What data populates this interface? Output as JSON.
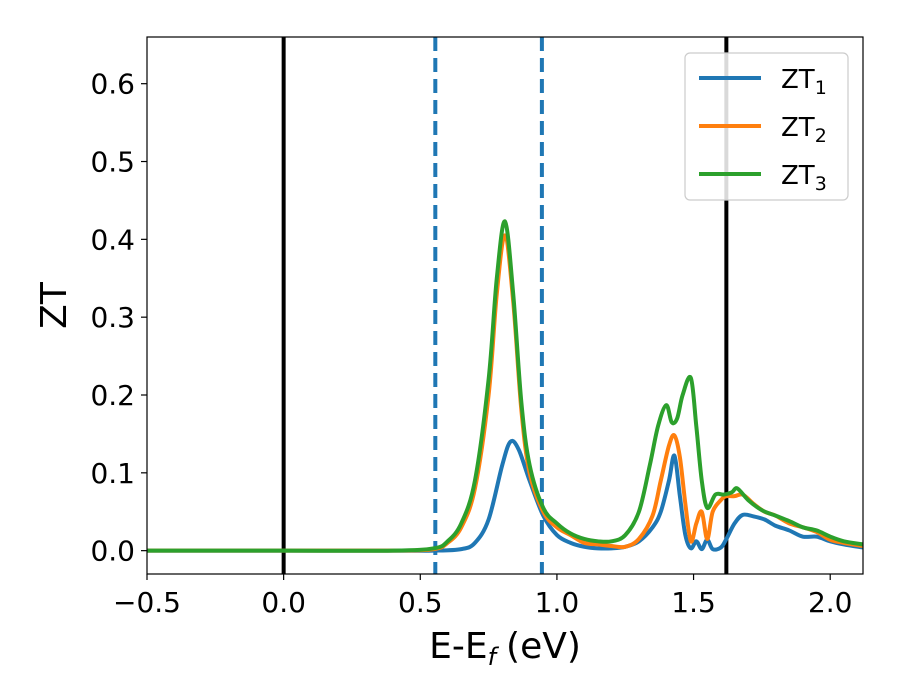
{
  "chart_data": {
    "type": "line",
    "xlabel": "E-E",
    "xlabel_sub": "f",
    "xlabel_unit": "(eV)",
    "ylabel": "ZT",
    "xlim": [
      -0.5,
      2.12
    ],
    "ylim": [
      -0.03,
      0.66
    ],
    "xticks": [
      {
        "value": -0.5,
        "label": "−0.5"
      },
      {
        "value": 0.0,
        "label": "0.0"
      },
      {
        "value": 0.5,
        "label": "0.5"
      },
      {
        "value": 1.0,
        "label": "1.0"
      },
      {
        "value": 1.5,
        "label": "1.5"
      },
      {
        "value": 2.0,
        "label": "2.0"
      }
    ],
    "yticks": [
      {
        "value": 0.0,
        "label": "0.0"
      },
      {
        "value": 0.1,
        "label": "0.1"
      },
      {
        "value": 0.2,
        "label": "0.2"
      },
      {
        "value": 0.3,
        "label": "0.3"
      },
      {
        "value": 0.4,
        "label": "0.4"
      },
      {
        "value": 0.5,
        "label": "0.5"
      },
      {
        "value": 0.6,
        "label": "0.6"
      }
    ],
    "grid": false,
    "legend_placement": "upper-right",
    "vlines": [
      {
        "x": 0.0,
        "color": "#000000",
        "style": "solid"
      },
      {
        "x": 1.62,
        "color": "#000000",
        "style": "solid"
      },
      {
        "x": 0.555,
        "color": "#1f77b4",
        "style": "dashed"
      },
      {
        "x": 0.945,
        "color": "#1f77b4",
        "style": "dashed"
      }
    ],
    "series": [
      {
        "name": "ZT",
        "name_sub": "1",
        "color": "#1f77b4",
        "x": [
          -0.5,
          0.0,
          0.4,
          0.55,
          0.65,
          0.7,
          0.75,
          0.8,
          0.83,
          0.86,
          0.9,
          0.95,
          1.0,
          1.05,
          1.1,
          1.15,
          1.2,
          1.25,
          1.3,
          1.35,
          1.38,
          1.41,
          1.43,
          1.45,
          1.47,
          1.49,
          1.51,
          1.53,
          1.55,
          1.57,
          1.6,
          1.62,
          1.65,
          1.68,
          1.72,
          1.76,
          1.8,
          1.85,
          1.9,
          1.95,
          2.0,
          2.05,
          2.12
        ],
        "y": [
          0.0,
          0.0,
          0.0,
          0.0,
          0.002,
          0.01,
          0.04,
          0.11,
          0.14,
          0.13,
          0.09,
          0.045,
          0.02,
          0.01,
          0.005,
          0.003,
          0.003,
          0.005,
          0.012,
          0.03,
          0.05,
          0.09,
          0.122,
          0.07,
          0.02,
          0.003,
          0.012,
          0.002,
          0.014,
          0.002,
          0.004,
          0.015,
          0.035,
          0.046,
          0.044,
          0.04,
          0.032,
          0.026,
          0.018,
          0.018,
          0.012,
          0.008,
          0.004
        ]
      },
      {
        "name": "ZT",
        "name_sub": "2",
        "color": "#ff7f0e",
        "x": [
          -0.5,
          0.0,
          0.4,
          0.55,
          0.6,
          0.65,
          0.7,
          0.75,
          0.78,
          0.81,
          0.84,
          0.87,
          0.9,
          0.95,
          1.0,
          1.05,
          1.1,
          1.15,
          1.2,
          1.25,
          1.3,
          1.35,
          1.38,
          1.41,
          1.43,
          1.45,
          1.47,
          1.49,
          1.51,
          1.53,
          1.55,
          1.57,
          1.6,
          1.62,
          1.65,
          1.68,
          1.72,
          1.76,
          1.8,
          1.85,
          1.9,
          1.95,
          2.0,
          2.05,
          2.12
        ],
        "y": [
          0.0,
          0.0,
          0.0,
          0.002,
          0.01,
          0.03,
          0.08,
          0.2,
          0.33,
          0.405,
          0.32,
          0.18,
          0.1,
          0.05,
          0.03,
          0.02,
          0.01,
          0.008,
          0.006,
          0.005,
          0.015,
          0.045,
          0.09,
          0.135,
          0.148,
          0.12,
          0.06,
          0.012,
          0.035,
          0.05,
          0.015,
          0.05,
          0.065,
          0.07,
          0.07,
          0.072,
          0.06,
          0.05,
          0.045,
          0.035,
          0.03,
          0.024,
          0.014,
          0.01,
          0.006
        ]
      },
      {
        "name": "ZT",
        "name_sub": "3",
        "color": "#2ca02c",
        "x": [
          -0.5,
          0.0,
          0.4,
          0.55,
          0.6,
          0.65,
          0.7,
          0.75,
          0.78,
          0.81,
          0.84,
          0.87,
          0.9,
          0.95,
          1.0,
          1.05,
          1.1,
          1.15,
          1.2,
          1.25,
          1.3,
          1.34,
          1.37,
          1.4,
          1.42,
          1.44,
          1.46,
          1.49,
          1.51,
          1.53,
          1.55,
          1.58,
          1.61,
          1.64,
          1.66,
          1.7,
          1.75,
          1.8,
          1.85,
          1.9,
          1.95,
          2.0,
          2.05,
          2.12
        ],
        "y": [
          0.0,
          0.0,
          0.0,
          0.003,
          0.012,
          0.035,
          0.09,
          0.22,
          0.35,
          0.423,
          0.33,
          0.19,
          0.11,
          0.055,
          0.035,
          0.022,
          0.015,
          0.012,
          0.012,
          0.02,
          0.05,
          0.11,
          0.16,
          0.187,
          0.165,
          0.17,
          0.2,
          0.222,
          0.16,
          0.09,
          0.055,
          0.072,
          0.072,
          0.075,
          0.08,
          0.065,
          0.052,
          0.045,
          0.038,
          0.03,
          0.026,
          0.018,
          0.012,
          0.008
        ]
      }
    ]
  }
}
